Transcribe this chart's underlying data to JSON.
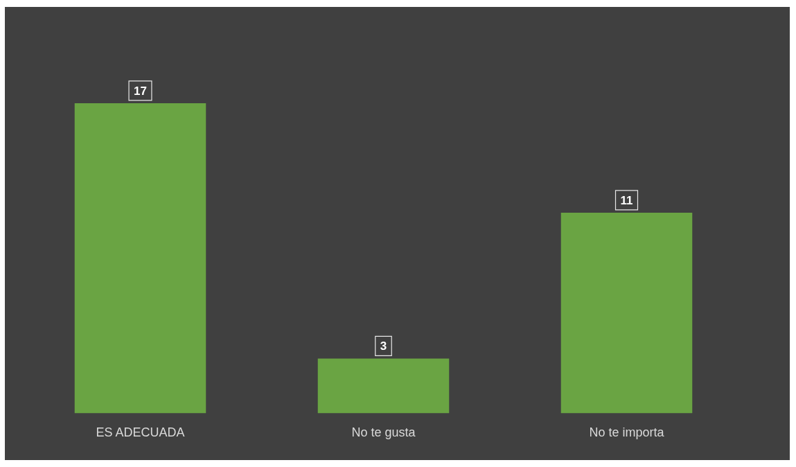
{
  "chart_data": {
    "type": "bar",
    "categories": [
      "ES ADECUADA",
      "No te gusta",
      "No te importa"
    ],
    "values": [
      17,
      3,
      11
    ],
    "color": "#6aa443",
    "data_labels": true,
    "grid": false,
    "legend": false
  }
}
